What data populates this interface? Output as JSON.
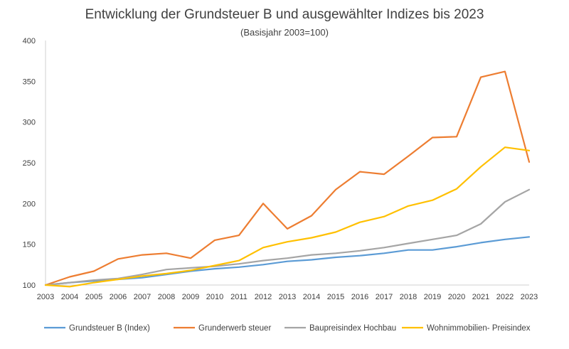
{
  "chart_data": {
    "type": "line",
    "title": "Entwicklung der Grundsteuer B und ausgewählter Indizes bis 2023",
    "subtitle": "(Basisjahr 2003=100)",
    "x": [
      "2003",
      "2004",
      "2005",
      "2006",
      "2007",
      "2008",
      "2009",
      "2010",
      "2011",
      "2012",
      "2013",
      "2014",
      "2015",
      "2016",
      "2017",
      "2018",
      "2019",
      "2020",
      "2021",
      "2022",
      "2023"
    ],
    "ylim": [
      100,
      400
    ],
    "yticks": [
      100,
      150,
      200,
      250,
      300,
      350,
      400
    ],
    "grid": false,
    "legend_position": "bottom",
    "series": [
      {
        "name": "Grundsteuer B (Index)",
        "color": "#5B9BD5",
        "values": [
          100,
          103,
          105,
          107,
          109,
          113,
          117,
          120,
          122,
          125,
          129,
          131,
          134,
          136,
          139,
          143,
          143,
          147,
          152,
          156,
          159
        ]
      },
      {
        "name": "Grunderwerb steuer",
        "color": "#ED7D31",
        "values": [
          100,
          110,
          117,
          132,
          137,
          139,
          133,
          155,
          161,
          200,
          169,
          185,
          217,
          239,
          236,
          258,
          281,
          282,
          355,
          362,
          251
        ]
      },
      {
        "name": "Baupreisindex Hochbau",
        "color": "#A5A5A5",
        "values": [
          100,
          103,
          106,
          108,
          113,
          119,
          121,
          123,
          126,
          130,
          133,
          137,
          139,
          142,
          146,
          151,
          156,
          161,
          175,
          202,
          217
        ]
      },
      {
        "name": "Wohnimmobilien- Preisindex",
        "color": "#FFC000",
        "values": [
          100,
          98,
          103,
          107,
          111,
          114,
          118,
          124,
          130,
          146,
          153,
          158,
          165,
          177,
          184,
          197,
          204,
          218,
          245,
          269,
          265
        ]
      }
    ]
  }
}
